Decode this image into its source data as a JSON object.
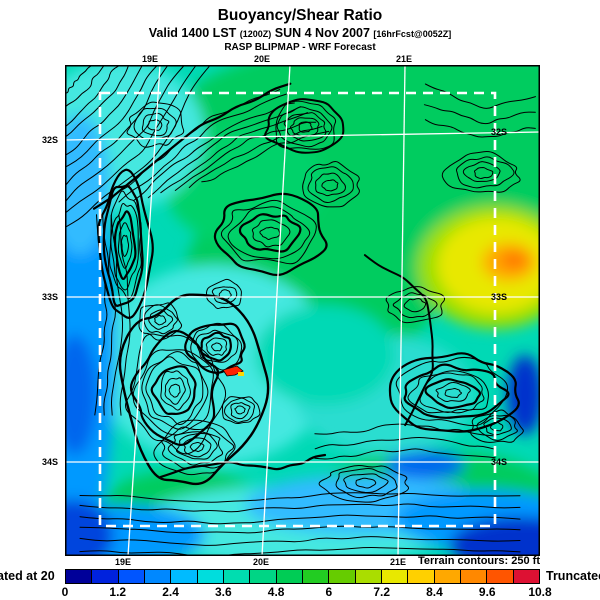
{
  "header": {
    "title": "Buoyancy/Shear Ratio",
    "valid_prefix": "Valid 1400 LST ",
    "valid_zulu": "(1200Z)",
    "valid_date": " SUN 4 Nov 2007 ",
    "valid_fcst": "[16hrFcst@0052Z]",
    "model_line": "RASP BLIPMAP - WRF Forecast"
  },
  "map": {
    "lon_labels": [
      "19E",
      "20E",
      "21E"
    ],
    "lat_labels": [
      "32S",
      "33S",
      "34S"
    ],
    "terrain_note": "Terrain contours: 250 ft"
  },
  "colorbar": {
    "ticks": [
      "0",
      "1.2",
      "2.4",
      "3.6",
      "4.8",
      "6",
      "7.2",
      "8.4",
      "9.6",
      "10.8"
    ],
    "colors": [
      "#000099",
      "#0022DD",
      "#0055FF",
      "#0088FF",
      "#00BBFF",
      "#00DDDD",
      "#00DDB0",
      "#00D585",
      "#00CC55",
      "#22CC22",
      "#66CC00",
      "#AADD00",
      "#E8E800",
      "#FFD000",
      "#FFA800",
      "#FF8800",
      "#FF5500",
      "#DD1133"
    ]
  },
  "footer": {
    "left_truncated_text": "ated at 20",
    "right_truncated_text": "Truncatec"
  }
}
